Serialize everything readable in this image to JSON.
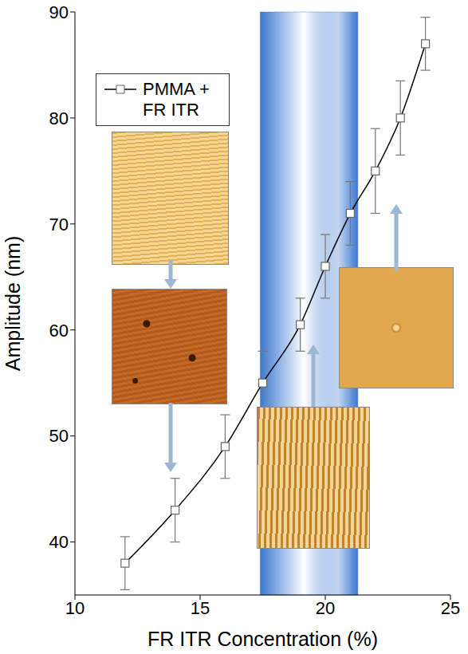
{
  "chart_data": {
    "type": "line",
    "x_label": "FR ITR Concentration (%)",
    "y_label": "Amplitude (nm)",
    "x": [
      12,
      14,
      16,
      17.5,
      19,
      20,
      21,
      22,
      23,
      24
    ],
    "series": [
      {
        "name": "PMMA + FR ITR",
        "color": "#000000",
        "values": [
          38,
          43,
          49,
          55,
          60.5,
          66,
          71,
          75,
          80,
          87
        ],
        "errors": [
          2.5,
          3,
          3,
          3,
          2.5,
          3,
          3,
          4,
          3.5,
          2.5
        ],
        "marker": "square",
        "line_style": "solid"
      }
    ],
    "xlim": [
      10,
      25
    ],
    "xticks": [
      10,
      15,
      20,
      25
    ],
    "ylim": [
      35,
      90
    ],
    "yticks": [
      40,
      50,
      60,
      70,
      80,
      90
    ],
    "highlight": {
      "x": [
        17.4,
        21.3
      ],
      "color": "#3b78d0"
    },
    "legend": "upper left",
    "grid": false
  }
}
